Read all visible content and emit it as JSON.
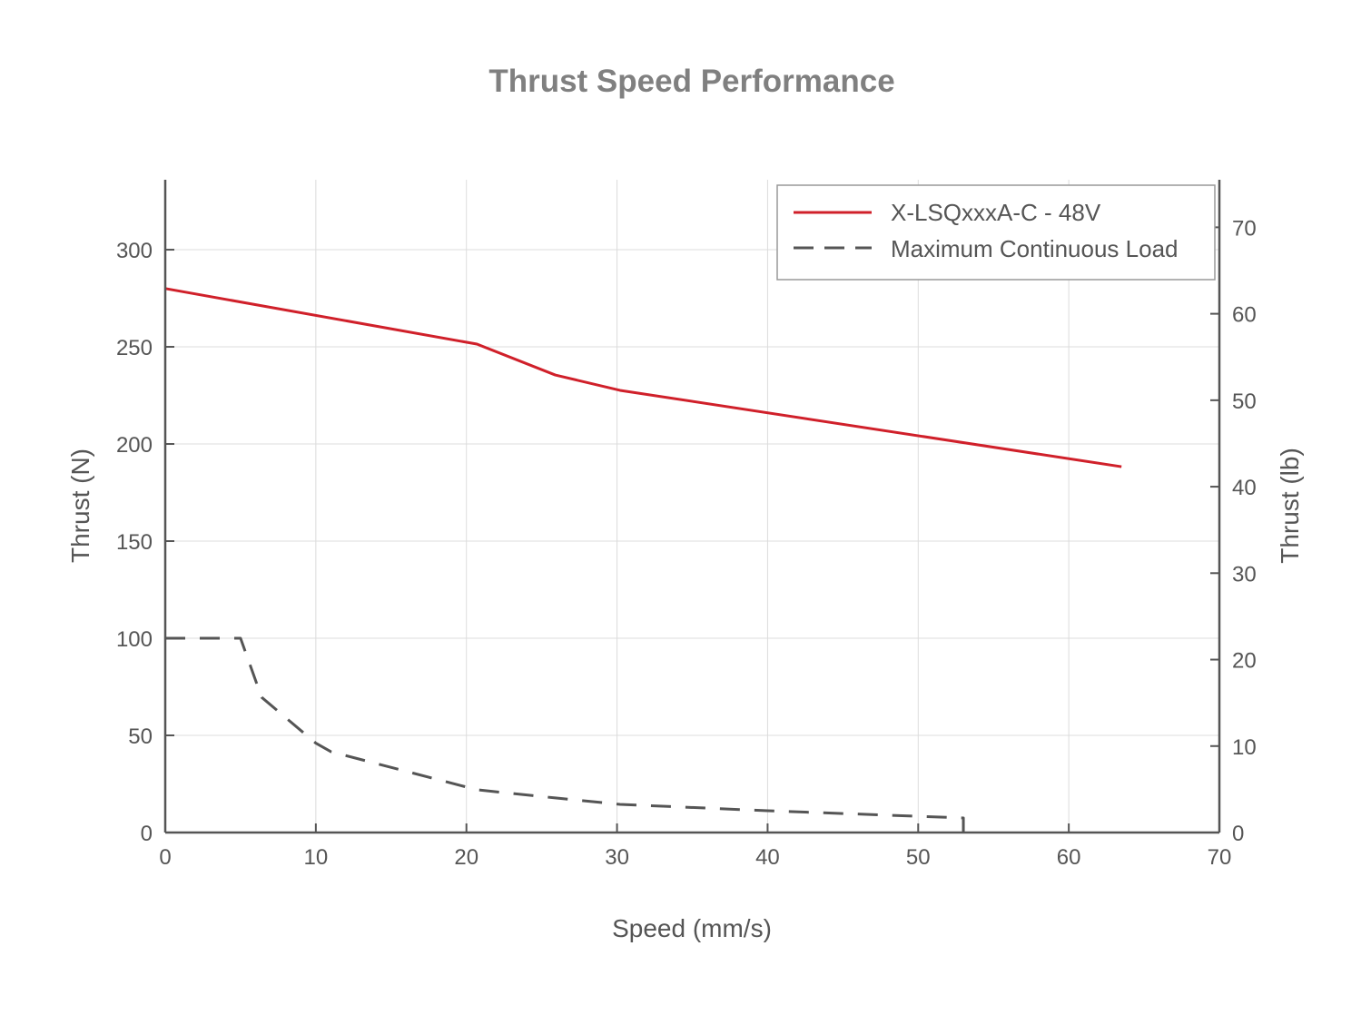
{
  "chart_data": {
    "type": "line",
    "title": "Thrust Speed Performance",
    "xlabel": "Speed (mm/s)",
    "ylabel": "Thrust (N)",
    "y2label": "Thrust (lb)",
    "xlim": [
      0,
      70
    ],
    "ylim": [
      0,
      336
    ],
    "y2lim": [
      0,
      75.5
    ],
    "xticks": [
      0,
      10,
      20,
      30,
      40,
      50,
      60,
      70
    ],
    "yticks": [
      0,
      50,
      100,
      150,
      200,
      250,
      300
    ],
    "y2ticks": [
      0,
      10,
      20,
      30,
      40,
      50,
      60,
      70
    ],
    "grid": true,
    "legend_position": "top-right",
    "series": [
      {
        "name": "X-LSQxxxA-C - 48V",
        "color": "#d0202a",
        "style": "solid",
        "x": [
          0,
          20.7,
          25.9,
          30.2,
          63.5
        ],
        "y": [
          280,
          251.4,
          235.5,
          227.6,
          188.3
        ]
      },
      {
        "name": "Maximum Continuous Load",
        "color": "#555555",
        "style": "dashed",
        "x": [
          0,
          5.0,
          6.4,
          10,
          11,
          20.7,
          25.9,
          30.2,
          40,
          53,
          53
        ],
        "y": [
          100,
          100,
          69.6,
          46,
          41.6,
          22,
          17.8,
          14.5,
          11.2,
          7.5,
          0
        ]
      }
    ]
  }
}
